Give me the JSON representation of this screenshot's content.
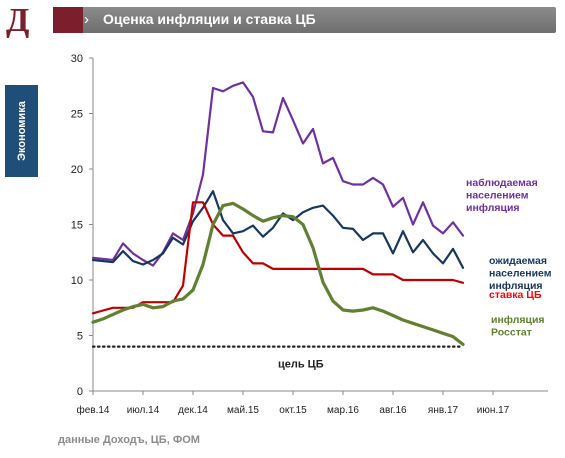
{
  "header": {
    "logo_letter": "Д",
    "title": "Оценка инфляции и ставка ЦБ",
    "arrow": "›",
    "chip_color": "#7a1f2b"
  },
  "sidebar": {
    "tab_label": "Экономика",
    "tab_color": "#1f4e79"
  },
  "footer": {
    "source": "данные Доходъ, ЦБ, ФОМ"
  },
  "chart_data": {
    "type": "line",
    "x_ticks": [
      "фев.14",
      "июл.14",
      "дек.14",
      "май.15",
      "окт.15",
      "мар.16",
      "авг.16",
      "янв.17",
      "июн.17"
    ],
    "x_tick_index": [
      0,
      5,
      10,
      15,
      20,
      25,
      30,
      35,
      40
    ],
    "ylim": [
      0,
      30
    ],
    "y_ticks": [
      0,
      5,
      10,
      15,
      20,
      25,
      30
    ],
    "series": [
      {
        "name": "наблюдаемая\nнаселением\nинфляция",
        "color": "#7030a0",
        "x": [
          0,
          2,
          3,
          4,
          5,
          6,
          7,
          8,
          9,
          10,
          11,
          12,
          13,
          14,
          15,
          16,
          17,
          18,
          19,
          20,
          21,
          22,
          23,
          24,
          25,
          26,
          27,
          28,
          29,
          30,
          31,
          32,
          33,
          34,
          35,
          36,
          37
        ],
        "values": [
          12.0,
          11.8,
          13.3,
          12.4,
          11.8,
          11.3,
          12.5,
          14.2,
          13.6,
          16.0,
          19.5,
          27.3,
          27.0,
          27.5,
          27.8,
          26.5,
          23.4,
          23.3,
          26.4,
          24.4,
          22.3,
          23.6,
          20.5,
          21.0,
          18.9,
          18.6,
          18.6,
          19.2,
          18.6,
          16.6,
          17.4,
          15.0,
          17.0,
          14.9,
          14.2,
          15.2,
          14.0
        ],
        "label_color": "#7030a0"
      },
      {
        "name": "ожидаемая\nнаселением\nинфляция",
        "color": "#17375e",
        "x": [
          0,
          2,
          3,
          4,
          5,
          6,
          7,
          8,
          9,
          10,
          11,
          12,
          13,
          14,
          15,
          16,
          17,
          18,
          19,
          20,
          21,
          22,
          23,
          24,
          25,
          26,
          27,
          28,
          29,
          30,
          31,
          32,
          33,
          34,
          35,
          36,
          37
        ],
        "values": [
          11.8,
          11.6,
          12.6,
          11.7,
          11.4,
          11.8,
          12.4,
          13.8,
          13.2,
          15.3,
          16.5,
          18.0,
          15.4,
          14.2,
          14.4,
          14.9,
          13.9,
          14.7,
          16.0,
          15.4,
          16.1,
          16.5,
          16.7,
          15.8,
          14.7,
          14.6,
          13.6,
          14.2,
          14.2,
          12.4,
          14.4,
          12.5,
          13.6,
          12.4,
          11.5,
          12.8,
          11.1
        ],
        "label_color": "#17375e"
      },
      {
        "name": "ставка ЦБ",
        "color": "#c00000",
        "x": [
          0,
          1,
          2,
          3,
          4,
          5,
          6,
          7,
          8,
          9,
          10,
          11,
          12,
          13,
          14,
          15,
          16,
          17,
          18,
          19,
          20,
          21,
          22,
          23,
          24,
          25,
          26,
          27,
          28,
          29,
          30,
          31,
          32,
          33,
          34,
          35,
          36,
          37
        ],
        "values": [
          7.0,
          7.25,
          7.5,
          7.5,
          7.5,
          8.0,
          8.0,
          8.0,
          8.0,
          9.5,
          17.0,
          17.0,
          15.0,
          14.0,
          14.0,
          12.5,
          11.5,
          11.5,
          11.0,
          11.0,
          11.0,
          11.0,
          11.0,
          11.0,
          11.0,
          11.0,
          11.0,
          11.0,
          10.5,
          10.5,
          10.5,
          10.0,
          10.0,
          10.0,
          10.0,
          10.0,
          10.0,
          9.75
        ],
        "label_color": "#ff0000"
      },
      {
        "name": "инфляция\nРосстат",
        "color": "#5f8130",
        "x": [
          0,
          1,
          2,
          3,
          4,
          5,
          6,
          7,
          8,
          9,
          10,
          11,
          12,
          13,
          14,
          15,
          16,
          17,
          18,
          19,
          20,
          21,
          22,
          23,
          24,
          25,
          26,
          27,
          28,
          29,
          30,
          31,
          32,
          33,
          34,
          35,
          36,
          37
        ],
        "values": [
          6.2,
          6.5,
          6.9,
          7.3,
          7.6,
          7.8,
          7.5,
          7.6,
          8.1,
          8.3,
          9.1,
          11.4,
          15.0,
          16.7,
          16.9,
          16.4,
          15.8,
          15.3,
          15.6,
          15.8,
          15.7,
          15.0,
          12.9,
          9.8,
          8.1,
          7.3,
          7.2,
          7.3,
          7.5,
          7.2,
          6.8,
          6.4,
          6.1,
          5.8,
          5.5,
          5.2,
          4.9,
          4.2
        ],
        "label_color": "#5f8130"
      }
    ],
    "target_line": {
      "value": 4,
      "label": "цель ЦБ",
      "color": "#222222"
    },
    "grid": false,
    "legend": "inline-right"
  }
}
